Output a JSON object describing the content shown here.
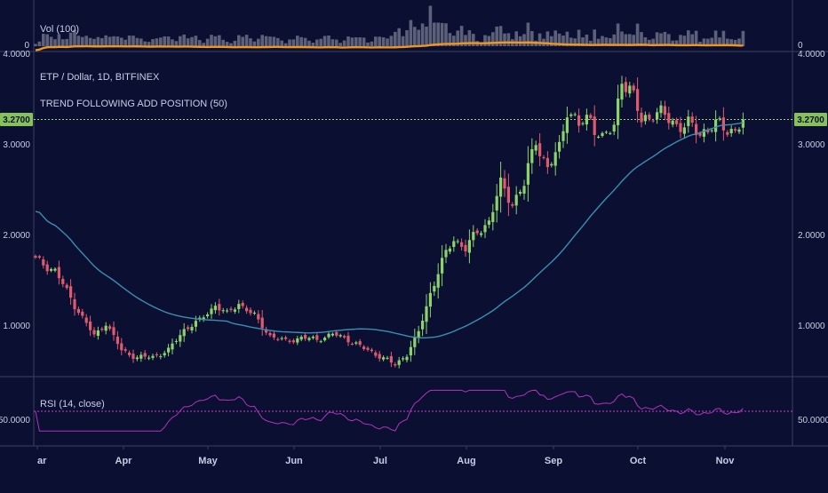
{
  "colors": {
    "background": "#0b1033",
    "pane_border": "#3a3f5c",
    "up_candle": "#8bd36a",
    "down_candle": "#e05a6d",
    "ma_line": "#3b8eb0",
    "last_price_line": "#9fd46a",
    "last_price_badge": "#86c15a",
    "volume_bar": "#6b6f86",
    "volume_ma": "#f0961e",
    "rsi_line": "#b034b8",
    "rsi_midline": "#c040d0",
    "text": "#c8cde6"
  },
  "chart_data": [
    {
      "type": "bar",
      "pane": "volume",
      "title": "Vol (100)",
      "y_tick_labels": [
        "0",
        "0"
      ],
      "overlay_series": [
        {
          "name": "Vol MA",
          "type": "line"
        }
      ]
    },
    {
      "type": "candlestick",
      "pane": "price",
      "title": "ETP / Dollar, 1D, BITFINEX",
      "subtitle": "TREND FOLLOWING ADD POSITION (50)",
      "ylim": [
        0.45,
        4.0
      ],
      "y_ticks": [
        1.0,
        2.0,
        3.0,
        4.0
      ],
      "y_tick_labels": [
        "1.0000",
        "2.0000",
        "3.0000",
        "4.0000"
      ],
      "last_price": 3.27,
      "last_price_label": "3.2700",
      "x_tick_labels": [
        "ar",
        "Apr",
        "May",
        "Jun",
        "Jul",
        "Aug",
        "Sep",
        "Oct",
        "Nov"
      ],
      "close_keypoints": [
        [
          0,
          1.72
        ],
        [
          5,
          1.6
        ],
        [
          10,
          1.22
        ],
        [
          15,
          0.88
        ],
        [
          18,
          1.02
        ],
        [
          22,
          0.72
        ],
        [
          26,
          0.64
        ],
        [
          30,
          0.65
        ],
        [
          34,
          0.72
        ],
        [
          38,
          0.95
        ],
        [
          42,
          1.05
        ],
        [
          46,
          1.22
        ],
        [
          49,
          1.12
        ],
        [
          52,
          1.24
        ],
        [
          56,
          1.1
        ],
        [
          60,
          0.88
        ],
        [
          64,
          0.82
        ],
        [
          68,
          0.86
        ],
        [
          72,
          0.84
        ],
        [
          76,
          0.9
        ],
        [
          80,
          0.84
        ],
        [
          84,
          0.74
        ],
        [
          88,
          0.66
        ],
        [
          92,
          0.56
        ],
        [
          95,
          0.68
        ],
        [
          98,
          0.92
        ],
        [
          101,
          1.35
        ],
        [
          104,
          1.7
        ],
        [
          107,
          1.95
        ],
        [
          110,
          1.85
        ],
        [
          113,
          2.02
        ],
        [
          116,
          2.15
        ],
        [
          119,
          2.55
        ],
        [
          122,
          2.35
        ],
        [
          125,
          2.55
        ],
        [
          128,
          3.05
        ],
        [
          131,
          2.72
        ],
        [
          134,
          2.95
        ],
        [
          136,
          3.4
        ],
        [
          139,
          3.2
        ],
        [
          142,
          3.28
        ],
        [
          145,
          3.05
        ],
        [
          148,
          3.18
        ],
        [
          150,
          3.75
        ],
        [
          153,
          3.5
        ],
        [
          155,
          3.25
        ],
        [
          158,
          3.35
        ],
        [
          161,
          3.3
        ],
        [
          164,
          3.22
        ],
        [
          167,
          3.2
        ],
        [
          170,
          3.12
        ],
        [
          173,
          3.2
        ],
        [
          176,
          3.18
        ],
        [
          179,
          3.15
        ],
        [
          181,
          3.27
        ]
      ],
      "series": [
        {
          "name": "ETP / Dollar",
          "type": "candlestick"
        },
        {
          "name": "TREND FOLLOWING ADD POSITION (50)",
          "type": "line"
        }
      ]
    },
    {
      "type": "line",
      "pane": "rsi",
      "title": "RSI (14, close)",
      "ylim": [
        0,
        100
      ],
      "y_ticks": [
        50
      ],
      "y_tick_labels": [
        "50.0000"
      ],
      "midline_value": 50,
      "series": [
        {
          "name": "RSI (14, close)"
        }
      ]
    }
  ]
}
